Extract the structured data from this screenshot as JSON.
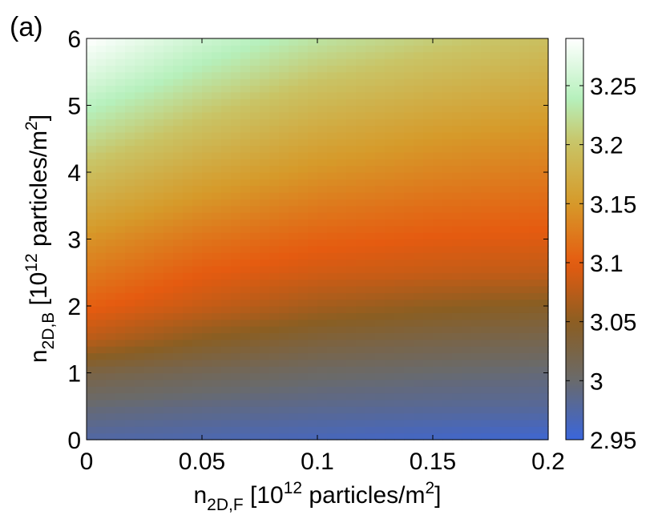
{
  "panel_label": "(a)",
  "chart_data": {
    "type": "heatmap",
    "xlabel": {
      "main": "n",
      "sub": "2D,F",
      "rest1": " [10",
      "sup": "12",
      "rest2": " particles/m",
      "sup2": "2",
      "rest3": "]"
    },
    "ylabel": {
      "main": "n",
      "sub": "2D,B",
      "rest1": " [10",
      "sup": "12",
      "rest2": " particles/m",
      "sup2": "2",
      "rest3": "]"
    },
    "xlim": [
      0,
      0.2
    ],
    "ylim": [
      0,
      6
    ],
    "x_ticks": [
      0,
      0.05,
      0.1,
      0.15,
      0.2
    ],
    "x_tick_labels": [
      "0",
      "0.05",
      "0.1",
      "0.15",
      "0.2"
    ],
    "y_ticks": [
      0,
      1,
      2,
      3,
      4,
      5,
      6
    ],
    "y_tick_labels": [
      "0",
      "1",
      "2",
      "3",
      "4",
      "5",
      "6"
    ],
    "colorbar": {
      "range": [
        2.95,
        3.29
      ],
      "ticks": [
        2.95,
        3,
        3.05,
        3.1,
        3.15,
        3.2,
        3.25
      ],
      "tick_labels": [
        "2.95",
        "3",
        "3.05",
        "3.1",
        "3.15",
        "3.2",
        "3.25"
      ],
      "colormap": [
        [
          0.0,
          "#3a66dc"
        ],
        [
          0.15,
          "#6a6a6a"
        ],
        [
          0.29,
          "#8a5e22"
        ],
        [
          0.44,
          "#e55b10"
        ],
        [
          0.59,
          "#d69a2a"
        ],
        [
          0.74,
          "#c9c466"
        ],
        [
          0.85,
          "#b6f0bc"
        ],
        [
          1.0,
          "#ffffff"
        ]
      ]
    },
    "value_grid": {
      "x": [
        0,
        0.05,
        0.1,
        0.15,
        0.2
      ],
      "y": [
        0,
        0.5,
        1,
        1.5,
        2,
        2.5,
        3,
        3.5,
        4,
        4.5,
        5,
        5.5,
        6
      ],
      "z": [
        [
          2.975,
          2.97,
          2.965,
          2.96,
          2.955
        ],
        [
          2.997,
          2.99,
          2.985,
          2.982,
          2.98
        ],
        [
          3.025,
          3.013,
          3.004,
          2.999,
          2.995
        ],
        [
          3.075,
          3.048,
          3.032,
          3.024,
          3.019
        ],
        [
          3.103,
          3.082,
          3.063,
          3.052,
          3.045
        ],
        [
          3.125,
          3.1,
          3.088,
          3.082,
          3.078
        ],
        [
          3.145,
          3.12,
          3.105,
          3.098,
          3.095
        ],
        [
          3.17,
          3.143,
          3.125,
          3.115,
          3.11
        ],
        [
          3.195,
          3.165,
          3.145,
          3.133,
          3.126
        ],
        [
          3.22,
          3.188,
          3.165,
          3.15,
          3.142
        ],
        [
          3.243,
          3.21,
          3.185,
          3.17,
          3.16
        ],
        [
          3.268,
          3.233,
          3.207,
          3.19,
          3.178
        ],
        [
          3.29,
          3.255,
          3.228,
          3.21,
          3.196
        ]
      ]
    },
    "grid": false
  }
}
